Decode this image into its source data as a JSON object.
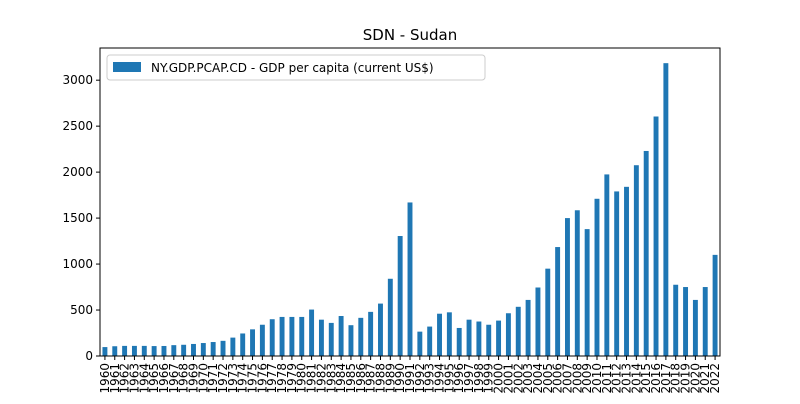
{
  "chart_data": {
    "type": "bar",
    "title": "SDN - Sudan",
    "xlabel": "",
    "ylabel": "",
    "ylim": [
      0,
      3350
    ],
    "yticks": [
      0,
      500,
      1000,
      1500,
      2000,
      2500,
      3000
    ],
    "grid": false,
    "legend_position": "top-left",
    "categories": [
      "1960",
      "1961",
      "1962",
      "1963",
      "1964",
      "1965",
      "1966",
      "1967",
      "1968",
      "1969",
      "1970",
      "1971",
      "1972",
      "1973",
      "1974",
      "1975",
      "1976",
      "1977",
      "1978",
      "1979",
      "1980",
      "1981",
      "1982",
      "1983",
      "1984",
      "1985",
      "1986",
      "1987",
      "1988",
      "1989",
      "1990",
      "1991",
      "1992",
      "1993",
      "1994",
      "1995",
      "1996",
      "1997",
      "1998",
      "1999",
      "2000",
      "2001",
      "2002",
      "2003",
      "2004",
      "2005",
      "2006",
      "2007",
      "2008",
      "2009",
      "2010",
      "2011",
      "2012",
      "2013",
      "2014",
      "2015",
      "2016",
      "2017",
      "2018",
      "2019",
      "2020",
      "2021",
      "2022"
    ],
    "series": [
      {
        "name": "NY.GDP.PCAP.CD - GDP per capita (current US$)",
        "color": "#1f77b4",
        "values": [
          97,
          106,
          110,
          110,
          110,
          108,
          109,
          118,
          122,
          131,
          141,
          152,
          165,
          200,
          245,
          290,
          340,
          400,
          425,
          425,
          425,
          505,
          395,
          360,
          435,
          335,
          415,
          480,
          570,
          840,
          1305,
          1670,
          265,
          320,
          460,
          475,
          305,
          395,
          375,
          340,
          385,
          465,
          535,
          610,
          745,
          950,
          1185,
          1500,
          1585,
          1380,
          1710,
          1975,
          1790,
          1840,
          2075,
          2230,
          2605,
          3185,
          775,
          750,
          610,
          750,
          1100
        ]
      }
    ]
  }
}
